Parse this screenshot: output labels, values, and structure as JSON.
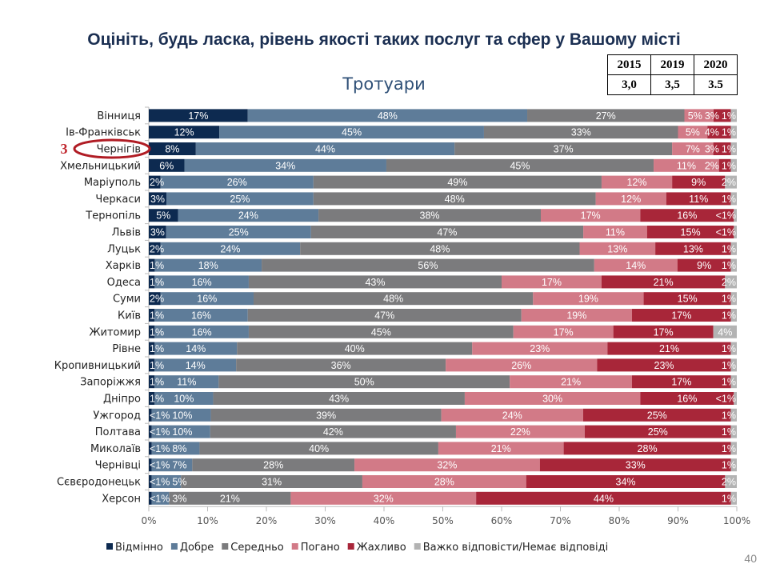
{
  "title": "Оцініть, будь ласка, рівень якості таких послуг та сфер у Вашому місті",
  "score_table": {
    "years": [
      "2015",
      "2019",
      "2020"
    ],
    "values": [
      "3,0",
      "3,5",
      "3.5"
    ]
  },
  "annotation": {
    "rank": "3",
    "highlighted_city": "Чернігів"
  },
  "page_number": "40",
  "chart_data": {
    "type": "bar",
    "orientation": "horizontal",
    "stacked": true,
    "title": "Тротуари",
    "xlim": [
      0,
      100
    ],
    "xticks": [
      "0%",
      "10%",
      "20%",
      "30%",
      "40%",
      "50%",
      "60%",
      "70%",
      "80%",
      "90%",
      "100%"
    ],
    "grid": true,
    "legend_position": "bottom",
    "categories": [
      "Вінниця",
      "Ів-Франківськ",
      "Чернігів",
      "Хмельницький",
      "Маріуполь",
      "Черкаси",
      "Тернопіль",
      "Львів",
      "Луцьк",
      "Харків",
      "Одеса",
      "Суми",
      "Київ",
      "Житомир",
      "Рівне",
      "Кропивницький",
      "Запоріжжя",
      "Дніпро",
      "Ужгород",
      "Полтава",
      "Миколаїв",
      "Чернівці",
      "Сєвєродонецьк",
      "Херсон"
    ],
    "series": [
      {
        "name": "Відмінно",
        "color": "#0d2a50",
        "labels": [
          "17%",
          "12%",
          "8%",
          "6%",
          "2%",
          "3%",
          "5%",
          "3%",
          "2%",
          "1%",
          "1%",
          "2%",
          "1%",
          "1%",
          "1%",
          "1%",
          "1%",
          "1%",
          "<1%",
          "<1%",
          "<1%",
          "<1%",
          "<1%",
          "<1%"
        ]
      },
      {
        "name": "Добре",
        "color": "#5e7c99",
        "labels": [
          "48%",
          "45%",
          "44%",
          "34%",
          "26%",
          "25%",
          "24%",
          "25%",
          "24%",
          "18%",
          "16%",
          "16%",
          "16%",
          "16%",
          "14%",
          "14%",
          "11%",
          "10%",
          "10%",
          "10%",
          "8%",
          "7%",
          "5%",
          "3%"
        ]
      },
      {
        "name": "Середньо",
        "color": "#7b7b7d",
        "labels": [
          "27%",
          "33%",
          "37%",
          "45%",
          "49%",
          "48%",
          "38%",
          "47%",
          "48%",
          "56%",
          "43%",
          "48%",
          "47%",
          "45%",
          "40%",
          "36%",
          "50%",
          "43%",
          "39%",
          "42%",
          "40%",
          "28%",
          "31%",
          "21%"
        ]
      },
      {
        "name": "Погано",
        "color": "#d27a87",
        "labels": [
          "5%",
          "5%",
          "7%",
          "11%",
          "12%",
          "12%",
          "17%",
          "11%",
          "13%",
          "14%",
          "17%",
          "19%",
          "19%",
          "17%",
          "23%",
          "26%",
          "21%",
          "30%",
          "24%",
          "22%",
          "21%",
          "32%",
          "28%",
          "32%"
        ]
      },
      {
        "name": "Жахливо",
        "color": "#a82639",
        "labels": [
          "3%",
          "4%",
          "3%",
          "2%",
          "9%",
          "11%",
          "16%",
          "15%",
          "13%",
          "9%",
          "21%",
          "15%",
          "17%",
          "17%",
          "21%",
          "23%",
          "17%",
          "16%",
          "25%",
          "25%",
          "28%",
          "33%",
          "34%",
          "44%"
        ]
      },
      {
        "name": "Важко відповісти/Немає відповіді",
        "color": "#b3b3b3",
        "labels": [
          "1%",
          "1%",
          "1%",
          "1%",
          "2%",
          "1%",
          "<1%",
          "<1%",
          "1%",
          "1%",
          "2%",
          "1%",
          "1%",
          "4%",
          "1%",
          "1%",
          "1%",
          "<1%",
          "1%",
          "1%",
          "1%",
          "1%",
          "2%",
          "1%"
        ]
      }
    ]
  }
}
